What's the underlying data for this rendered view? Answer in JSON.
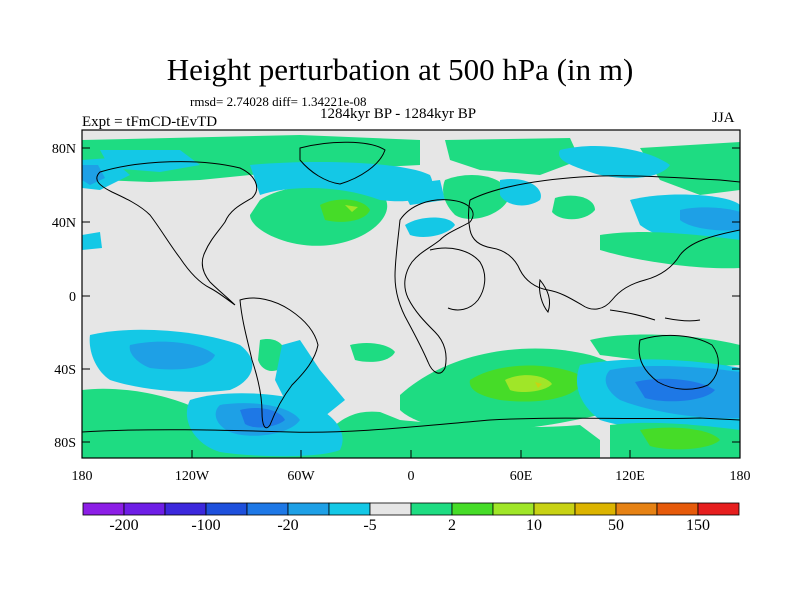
{
  "header": {
    "title": "Height perturbation at 500 hPa (in m)",
    "stats": "rmsd= 2.74028 diff= 1.34221e-08",
    "period": "1284kyr BP - 1284kyr BP",
    "expt": "Expt = tFmCD-tEvTD",
    "season": "JJA"
  },
  "axes": {
    "y_ticks": [
      "80N",
      "40N",
      "0",
      "40S",
      "80S"
    ],
    "x_ticks": [
      "180",
      "120W",
      "60W",
      "0",
      "60E",
      "120E",
      "180"
    ]
  },
  "colorbar": {
    "colors": [
      "#8c1ee6",
      "#6e1ee6",
      "#3c28dc",
      "#1e50dc",
      "#1e78e6",
      "#1ea0e6",
      "#14c8e6",
      "#e6e6e6",
      "#1edc82",
      "#46dc28",
      "#a0e628",
      "#c8d214",
      "#dcb400",
      "#e68214",
      "#e65a0a",
      "#e61e1e"
    ],
    "labels": [
      "-200",
      "-100",
      "-20",
      "-5",
      "2",
      "10",
      "50",
      "150"
    ]
  }
}
